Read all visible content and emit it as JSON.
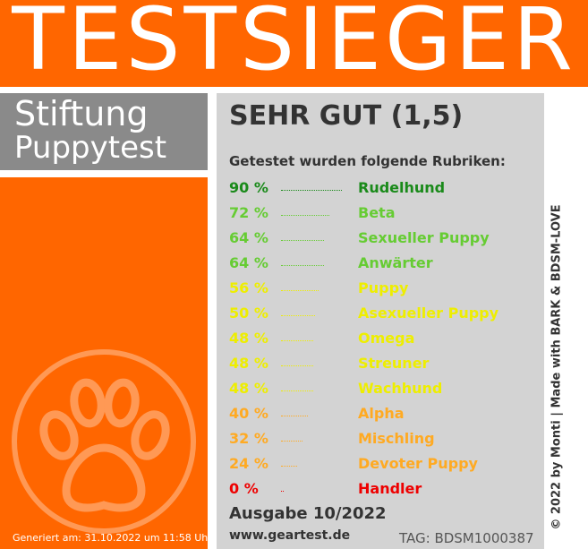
{
  "title": "TESTSIEGER",
  "brand": {
    "line1": "Stiftung",
    "line2": "Puppytest"
  },
  "grade": "SEHR GUT (1,5)",
  "subtitle": "Getestet wurden folgende Rubriken:",
  "categories": [
    {
      "percent": "90 %",
      "value": 90,
      "name": "Rudelhund",
      "color": "#1a8a1a"
    },
    {
      "percent": "72 %",
      "value": 72,
      "name": "Beta",
      "color": "#66cc33"
    },
    {
      "percent": "64 %",
      "value": 64,
      "name": "Sexueller Puppy",
      "color": "#66cc33"
    },
    {
      "percent": "64 %",
      "value": 64,
      "name": "Anwärter",
      "color": "#66cc33"
    },
    {
      "percent": "56 %",
      "value": 56,
      "name": "Puppy",
      "color": "#eeee00"
    },
    {
      "percent": "50 %",
      "value": 50,
      "name": "Asexueller Puppy",
      "color": "#eeee00"
    },
    {
      "percent": "48 %",
      "value": 48,
      "name": "Omega",
      "color": "#eeee00"
    },
    {
      "percent": "48 %",
      "value": 48,
      "name": "Streuner",
      "color": "#eeee00"
    },
    {
      "percent": "48 %",
      "value": 48,
      "name": "Wachhund",
      "color": "#eeee00"
    },
    {
      "percent": "40 %",
      "value": 40,
      "name": "Alpha",
      "color": "#ffaa22"
    },
    {
      "percent": "32 %",
      "value": 32,
      "name": "Mischling",
      "color": "#ffaa22"
    },
    {
      "percent": "24 %",
      "value": 24,
      "name": "Devoter Puppy",
      "color": "#ffaa22"
    },
    {
      "percent": "0 %",
      "value": 0,
      "name": "Handler",
      "color": "#ee0000"
    }
  ],
  "edition": "Ausgabe 10/2022",
  "website": "www.geartest.de",
  "tag": "TAG: BDSM1000387",
  "generated": "Generiert am: 31.10.2022 um 11:58 Uhr",
  "vertical_credit": "© 2022 by Monti | Made with BARK & BDSM-LOVE",
  "icons": {
    "paw": "paw-icon"
  },
  "colors": {
    "orange": "#ff6600",
    "gray_box": "#8a8a8a",
    "panel": "#d3d3d3"
  }
}
